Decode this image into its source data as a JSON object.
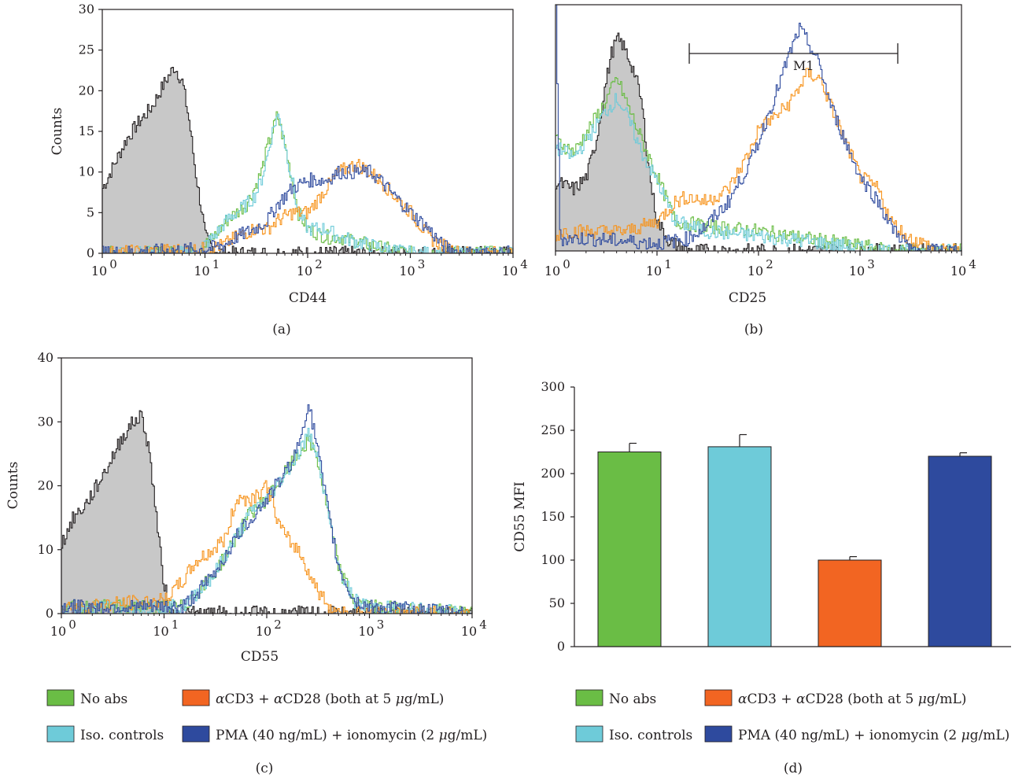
{
  "colors": {
    "no_abs": "#6abd45",
    "iso_controls": "#6ecbd9",
    "acd3_acd28": "#f26522",
    "acd3_acd28_line": "#f7941d",
    "pma_ionomycin": "#2e4a9e",
    "unstained_fill": "#c8c8c8"
  },
  "chart_data": [
    {
      "panel": "(a)",
      "type": "area",
      "xlabel": "CD44",
      "ylabel": "Counts",
      "x_scale": "log",
      "xlim": [
        1,
        10000
      ],
      "ylim": [
        0,
        30
      ],
      "x_ticks": [
        "10",
        "10",
        "10",
        "10",
        "10"
      ],
      "x_tick_exponents": [
        "0",
        "1",
        "2",
        "3",
        "4"
      ],
      "y_ticks": [
        "0",
        "5",
        "10",
        "15",
        "20",
        "25",
        "30"
      ],
      "series": [
        {
          "color_key": "unstained_fill",
          "x": [
            1,
            1.3,
            1.7,
            2.2,
            3,
            4,
            5,
            6,
            7,
            8,
            9,
            10,
            12,
            15
          ],
          "y": [
            8,
            11,
            14,
            16,
            18,
            21,
            23,
            21,
            16,
            10,
            6,
            2,
            0.5,
            0
          ]
        },
        {
          "color_key": "no_abs",
          "x": [
            1,
            8,
            12,
            16,
            20,
            25,
            30,
            35,
            40,
            45,
            50,
            55,
            60,
            70,
            80,
            100,
            150,
            200,
            400,
            600,
            1000
          ],
          "y": [
            0,
            0,
            2,
            4,
            5,
            6,
            8,
            10,
            13,
            15,
            17,
            15,
            13,
            9,
            5,
            3,
            2,
            2,
            1,
            0.5,
            0
          ]
        },
        {
          "color_key": "iso_controls",
          "x": [
            1,
            8,
            12,
            16,
            20,
            25,
            30,
            35,
            40,
            45,
            50,
            55,
            60,
            70,
            80,
            100,
            150,
            200,
            400,
            600,
            1000
          ],
          "y": [
            0,
            0,
            2,
            4,
            5,
            6,
            7,
            9,
            12,
            15,
            17,
            16,
            13,
            9,
            5,
            3,
            3,
            2,
            1,
            0.5,
            0
          ]
        },
        {
          "color_key": "acd3_acd28_line",
          "x": [
            1,
            10,
            15,
            20,
            30,
            40,
            50,
            70,
            100,
            150,
            200,
            300,
            400,
            500,
            700,
            1000,
            1500,
            2000,
            3000
          ],
          "y": [
            0,
            0.5,
            1,
            2,
            3,
            3,
            4,
            5,
            5,
            8,
            10,
            11,
            10,
            9,
            7,
            5,
            2,
            1,
            0
          ]
        },
        {
          "color_key": "pma_ionomycin",
          "x": [
            1,
            10,
            15,
            20,
            30,
            40,
            50,
            70,
            100,
            150,
            200,
            300,
            400,
            500,
            700,
            1000,
            1500,
            2000,
            3000
          ],
          "y": [
            0,
            0.5,
            1,
            2,
            3,
            4,
            6,
            8,
            9,
            9,
            10,
            10,
            10,
            9,
            7,
            5,
            3,
            1,
            0
          ]
        }
      ]
    },
    {
      "panel": "(b)",
      "type": "area",
      "xlabel": "CD25",
      "ylabel": "",
      "x_scale": "log",
      "xlim": [
        1,
        10000
      ],
      "x_ticks": [
        "10",
        "10",
        "10",
        "10",
        "10"
      ],
      "x_tick_exponents": [
        "0",
        "1",
        "2",
        "3",
        "4"
      ],
      "y_ticks": [],
      "marker": {
        "label": "M1",
        "x_range": [
          21,
          2400
        ]
      },
      "series": [
        {
          "color_key": "unstained_fill",
          "x": [
            1,
            1.5,
            2,
            2.5,
            3,
            3.5,
            4,
            4.5,
            5,
            6,
            7,
            8,
            9,
            10,
            13,
            20
          ],
          "y": [
            28,
            25,
            30,
            45,
            65,
            80,
            86,
            84,
            80,
            72,
            60,
            38,
            22,
            12,
            4,
            0
          ]
        },
        {
          "color_key": "no_abs",
          "x": [
            1,
            1.5,
            2,
            3,
            4,
            5,
            7,
            10,
            15,
            30,
            100,
            300,
            1000,
            2000
          ],
          "y": [
            45,
            40,
            48,
            60,
            70,
            60,
            45,
            30,
            12,
            10,
            8,
            5,
            2,
            0
          ]
        },
        {
          "color_key": "iso_controls",
          "x": [
            1,
            1.5,
            2,
            3,
            4,
            5,
            7,
            10,
            15,
            30,
            100,
            300,
            1000,
            2000
          ],
          "y": [
            42,
            38,
            45,
            56,
            62,
            55,
            40,
            28,
            12,
            8,
            6,
            4,
            1,
            0
          ]
        },
        {
          "color_key": "acd3_acd28_line",
          "x": [
            1,
            1.1,
            2,
            5,
            10,
            15,
            20,
            30,
            50,
            80,
            100,
            150,
            200,
            300,
            400,
            500,
            700,
            1000,
            1500,
            2000,
            3000,
            5000
          ],
          "y": [
            5,
            8,
            8,
            8,
            12,
            20,
            22,
            20,
            25,
            40,
            50,
            55,
            60,
            72,
            70,
            60,
            45,
            30,
            25,
            12,
            5,
            2
          ]
        },
        {
          "color_key": "pma_ionomycin",
          "x": [
            1,
            1.1,
            2,
            5,
            10,
            20,
            30,
            50,
            80,
            100,
            150,
            200,
            250,
            300,
            400,
            500,
            700,
            1000,
            1500,
            2000,
            3000
          ],
          "y": [
            100,
            5,
            5,
            4,
            3,
            5,
            10,
            20,
            35,
            45,
            65,
            80,
            90,
            85,
            75,
            60,
            45,
            30,
            20,
            10,
            2
          ]
        }
      ]
    },
    {
      "panel": "(c)",
      "type": "area",
      "xlabel": "CD55",
      "ylabel": "Counts",
      "x_scale": "log",
      "xlim": [
        1,
        10000
      ],
      "ylim": [
        0,
        40
      ],
      "x_ticks": [
        "10",
        "10",
        "10",
        "10",
        "10"
      ],
      "x_tick_exponents": [
        "0",
        "1",
        "2",
        "3",
        "4"
      ],
      "y_ticks": [
        "0",
        "10",
        "20",
        "30",
        "40"
      ],
      "series": [
        {
          "color_key": "unstained_fill",
          "x": [
            1,
            1.3,
            1.7,
            2.2,
            3,
            4,
            5,
            6,
            7,
            8,
            9,
            10,
            12
          ],
          "y": [
            11,
            15,
            17,
            20,
            24,
            28,
            30,
            31,
            26,
            18,
            10,
            4,
            0
          ]
        },
        {
          "color_key": "no_abs",
          "x": [
            1,
            10,
            15,
            20,
            30,
            50,
            70,
            100,
            150,
            200,
            250,
            300,
            400,
            500,
            700,
            1000,
            10000
          ],
          "y": [
            1,
            1,
            1,
            3,
            6,
            12,
            16,
            18,
            22,
            25,
            27,
            25,
            15,
            7,
            2,
            1,
            0
          ]
        },
        {
          "color_key": "iso_controls",
          "x": [
            1,
            10,
            15,
            20,
            30,
            50,
            70,
            100,
            150,
            200,
            250,
            300,
            400,
            500,
            700,
            1000,
            10000
          ],
          "y": [
            1,
            1,
            1,
            3,
            6,
            12,
            16,
            18,
            22,
            25,
            28,
            26,
            15,
            7,
            2,
            1,
            0
          ]
        },
        {
          "color_key": "acd3_acd28_line",
          "x": [
            1,
            10,
            15,
            20,
            30,
            40,
            50,
            70,
            100,
            130,
            150,
            200,
            300,
            400,
            600,
            1000
          ],
          "y": [
            1,
            2,
            5,
            8,
            10,
            12,
            18,
            18,
            20,
            14,
            12,
            10,
            4,
            1,
            0,
            0
          ]
        },
        {
          "color_key": "pma_ionomycin",
          "x": [
            1,
            10,
            15,
            20,
            30,
            50,
            70,
            100,
            150,
            200,
            250,
            300,
            400,
            500,
            700,
            1000,
            10000
          ],
          "y": [
            1,
            1,
            1,
            3,
            6,
            12,
            15,
            18,
            22,
            26,
            33,
            27,
            15,
            7,
            2,
            1,
            0
          ]
        }
      ]
    },
    {
      "panel": "(d)",
      "type": "bar",
      "xlabel": "",
      "ylabel": "CD55 MFI",
      "ylim": [
        0,
        300
      ],
      "y_ticks": [
        "0",
        "50",
        "100",
        "150",
        "200",
        "250",
        "300"
      ],
      "categories": [
        "No abs",
        "Iso. controls",
        "αCD3 + αCD28 (both at 5 μg/mL)",
        "PMA (40 ng/mL) + ionomycin (2 μg/mL)"
      ],
      "color_keys": [
        "no_abs",
        "iso_controls",
        "acd3_acd28",
        "pma_ionomycin"
      ],
      "values": [
        225,
        231,
        100,
        220
      ],
      "errors": [
        10,
        14,
        4,
        4
      ]
    }
  ],
  "panels": {
    "a": {
      "label": "(a)",
      "xlabel": "CD44",
      "ylabel": "Counts",
      "exp_base": "10"
    },
    "b": {
      "label": "(b)",
      "xlabel": "CD25",
      "marker_label": "M1"
    },
    "c": {
      "label": "(c)",
      "xlabel": "CD55",
      "ylabel": "Counts"
    },
    "d": {
      "label": "(d)",
      "ylabel": "CD55 MFI"
    }
  },
  "legend": {
    "no_abs": "No abs",
    "iso_controls": "Iso. controls",
    "acd3_prefix": "α",
    "acd3_mid": "CD3 + ",
    "acd28_prefix": "α",
    "acd28_text": "CD28 (both at 5 ",
    "mu": "μ",
    "acd28_suffix": "g/mL)",
    "pma_text": "PMA (40 ng/mL) + ionomycin (2 ",
    "pma_suffix": "g/mL)"
  }
}
